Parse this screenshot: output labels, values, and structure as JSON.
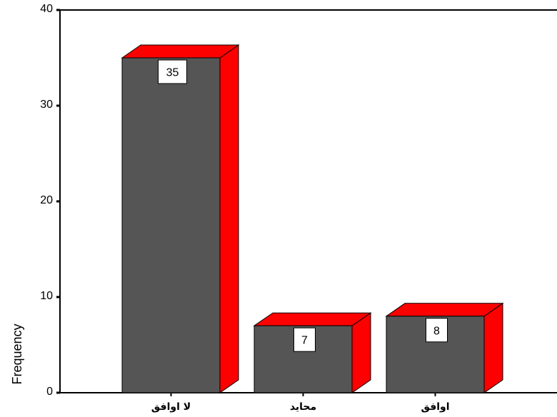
{
  "chart_data": {
    "type": "bar",
    "categories": [
      "لا اوافق",
      "محايد",
      "اوافق"
    ],
    "values": [
      35,
      7,
      8
    ],
    "data_labels": [
      "35",
      "7",
      "8"
    ],
    "ylabel": "Frequency",
    "xlabel": "",
    "ylim": [
      0,
      40
    ],
    "yticks": [
      0,
      10,
      20,
      30,
      40
    ],
    "grid": false,
    "style": "3d",
    "colors": {
      "bar_front": "#555555",
      "bar_side": "#ff0000",
      "bar_top": "#ff0000",
      "outline": "#000000",
      "label_box": "#ffffff"
    }
  }
}
